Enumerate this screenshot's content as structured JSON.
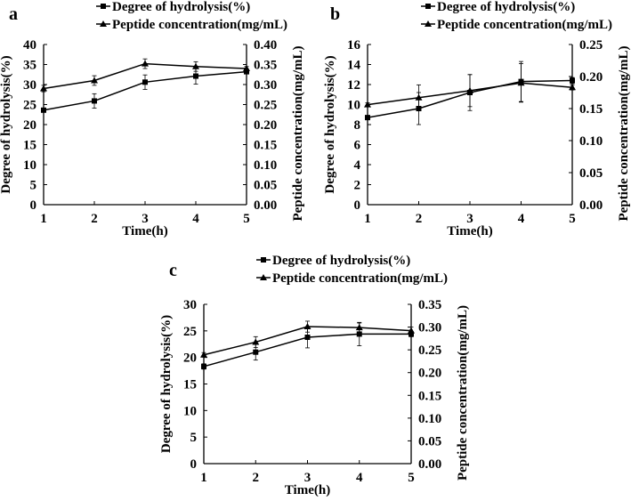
{
  "chart_data": [
    {
      "panel_label": "a",
      "type": "line",
      "xlabel": "Time(h)",
      "ylabel": "Degree of hydrolysis(%)",
      "y2label": "Peptide concentration(mg/mL)",
      "x": [
        1,
        2,
        3,
        4,
        5
      ],
      "xticks": [
        "1",
        "2",
        "3",
        "4",
        "5"
      ],
      "ylim": [
        0,
        40
      ],
      "yticks": [
        "0",
        "5",
        "10",
        "15",
        "20",
        "25",
        "30",
        "35",
        "40"
      ],
      "y2lim": [
        0,
        0.4
      ],
      "y2ticks": [
        "0.00",
        "0.05",
        "0.10",
        "0.15",
        "0.20",
        "0.25",
        "0.30",
        "0.35",
        "0.40"
      ],
      "legend": "top",
      "grid": false,
      "series": [
        {
          "name": "Degree of hydrolysis(%)",
          "marker": "square",
          "axis": "left",
          "values": [
            23.6,
            25.9,
            30.6,
            32.1,
            33.2
          ],
          "errors": [
            0.5,
            1.8,
            1.8,
            2.0,
            0.5
          ]
        },
        {
          "name": "Peptide concentration(mg/mL)",
          "marker": "triangle",
          "axis": "right",
          "values": [
            0.29,
            0.31,
            0.352,
            0.345,
            0.34
          ],
          "errors": [
            0.008,
            0.012,
            0.012,
            0.012,
            0.005
          ]
        }
      ]
    },
    {
      "panel_label": "b",
      "type": "line",
      "xlabel": "Time(h)",
      "ylabel": "Degree of hydrolysis(%)",
      "y2label": "Peptide concentration(mg/mL)",
      "x": [
        1,
        2,
        3,
        4,
        5
      ],
      "xticks": [
        "1",
        "2",
        "3",
        "4",
        "5"
      ],
      "ylim": [
        0,
        16
      ],
      "yticks": [
        "0",
        "2",
        "4",
        "6",
        "8",
        "10",
        "12",
        "14",
        "16"
      ],
      "y2lim": [
        0,
        0.25
      ],
      "y2ticks": [
        "0.00",
        "0.05",
        "0.10",
        "0.15",
        "0.20",
        "0.25"
      ],
      "legend": "top",
      "grid": false,
      "series": [
        {
          "name": "Degree of hydrolysis(%)",
          "marker": "square",
          "axis": "left",
          "values": [
            8.7,
            9.6,
            11.2,
            12.3,
            12.4
          ],
          "errors": [
            0.2,
            1.6,
            1.8,
            2.0,
            0.3
          ]
        },
        {
          "name": "Peptide concentration(mg/mL)",
          "marker": "triangle",
          "axis": "right",
          "values": [
            0.156,
            0.167,
            0.178,
            0.19,
            0.183
          ],
          "errors": [
            0.003,
            0.02,
            0.025,
            0.03,
            0.004
          ]
        }
      ]
    },
    {
      "panel_label": "c",
      "type": "line",
      "xlabel": "Time(h)",
      "ylabel": "Degree of hydrolysis(%)",
      "y2label": "Peptide concentration(mg/mL)",
      "x": [
        1,
        2,
        3,
        4,
        5
      ],
      "xticks": [
        "1",
        "2",
        "3",
        "4",
        "5"
      ],
      "ylim": [
        0,
        30
      ],
      "yticks": [
        "0",
        "5",
        "10",
        "15",
        "20",
        "25",
        "30"
      ],
      "y2lim": [
        0,
        0.35
      ],
      "y2ticks": [
        "0.00",
        "0.05",
        "0.10",
        "0.15",
        "0.20",
        "0.25",
        "0.30",
        "0.35"
      ],
      "legend": "top",
      "grid": false,
      "series": [
        {
          "name": "Degree of hydrolysis(%)",
          "marker": "square",
          "axis": "left",
          "values": [
            18.3,
            21.0,
            23.8,
            24.4,
            24.4
          ],
          "errors": [
            0.5,
            1.5,
            2.0,
            2.2,
            0.5
          ]
        },
        {
          "name": "Peptide concentration(mg/mL)",
          "marker": "triangle",
          "axis": "right",
          "values": [
            0.239,
            0.267,
            0.301,
            0.299,
            0.292
          ],
          "errors": [
            0.005,
            0.012,
            0.012,
            0.01,
            0.008
          ]
        }
      ]
    }
  ]
}
